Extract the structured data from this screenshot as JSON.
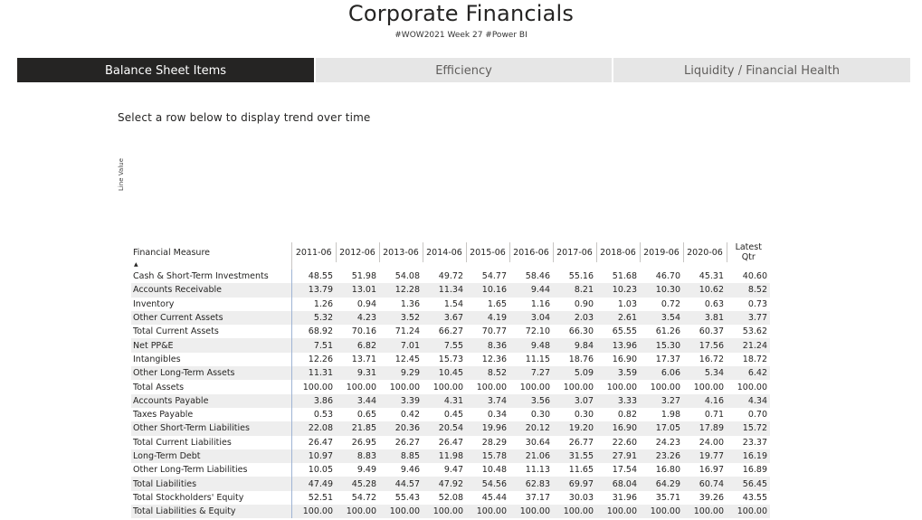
{
  "header": {
    "title": "Corporate Financials",
    "subtitle": "#WOW2021 Week 27 #Power BI"
  },
  "tabs": [
    {
      "label": "Balance Sheet Items",
      "active": true
    },
    {
      "label": "Efficiency",
      "active": false
    },
    {
      "label": "Liquidity / Financial Health",
      "active": false
    }
  ],
  "prompt": "Select a row below to display trend over time",
  "chart": {
    "y_axis_label": "Line Value"
  },
  "table": {
    "first_header": "Financial Measure",
    "sort_indicator": "▲",
    "columns": [
      "2011-06",
      "2012-06",
      "2013-06",
      "2014-06",
      "2015-06",
      "2016-06",
      "2017-06",
      "2018-06",
      "2019-06",
      "2020-06",
      "Latest Qtr"
    ],
    "rows": [
      {
        "label": "Cash & Short-Term Investments",
        "values": [
          "48.55",
          "51.98",
          "54.08",
          "49.72",
          "54.77",
          "58.46",
          "55.16",
          "51.68",
          "46.70",
          "45.31",
          "40.60"
        ]
      },
      {
        "label": "Accounts Receivable",
        "values": [
          "13.79",
          "13.01",
          "12.28",
          "11.34",
          "10.16",
          "9.44",
          "8.21",
          "10.23",
          "10.30",
          "10.62",
          "8.52"
        ]
      },
      {
        "label": "Inventory",
        "values": [
          "1.26",
          "0.94",
          "1.36",
          "1.54",
          "1.65",
          "1.16",
          "0.90",
          "1.03",
          "0.72",
          "0.63",
          "0.73"
        ]
      },
      {
        "label": "Other Current Assets",
        "values": [
          "5.32",
          "4.23",
          "3.52",
          "3.67",
          "4.19",
          "3.04",
          "2.03",
          "2.61",
          "3.54",
          "3.81",
          "3.77"
        ]
      },
      {
        "label": "Total Current Assets",
        "values": [
          "68.92",
          "70.16",
          "71.24",
          "66.27",
          "70.77",
          "72.10",
          "66.30",
          "65.55",
          "61.26",
          "60.37",
          "53.62"
        ]
      },
      {
        "label": "Net PP&E",
        "values": [
          "7.51",
          "6.82",
          "7.01",
          "7.55",
          "8.36",
          "9.48",
          "9.84",
          "13.96",
          "15.30",
          "17.56",
          "21.24"
        ]
      },
      {
        "label": "Intangibles",
        "values": [
          "12.26",
          "13.71",
          "12.45",
          "15.73",
          "12.36",
          "11.15",
          "18.76",
          "16.90",
          "17.37",
          "16.72",
          "18.72"
        ]
      },
      {
        "label": "Other Long-Term Assets",
        "values": [
          "11.31",
          "9.31",
          "9.29",
          "10.45",
          "8.52",
          "7.27",
          "5.09",
          "3.59",
          "6.06",
          "5.34",
          "6.42"
        ]
      },
      {
        "label": "Total Assets",
        "values": [
          "100.00",
          "100.00",
          "100.00",
          "100.00",
          "100.00",
          "100.00",
          "100.00",
          "100.00",
          "100.00",
          "100.00",
          "100.00"
        ]
      },
      {
        "label": "Accounts Payable",
        "values": [
          "3.86",
          "3.44",
          "3.39",
          "4.31",
          "3.74",
          "3.56",
          "3.07",
          "3.33",
          "3.27",
          "4.16",
          "4.34"
        ]
      },
      {
        "label": "Taxes Payable",
        "values": [
          "0.53",
          "0.65",
          "0.42",
          "0.45",
          "0.34",
          "0.30",
          "0.30",
          "0.82",
          "1.98",
          "0.71",
          "0.70"
        ]
      },
      {
        "label": "Other Short-Term Liabilities",
        "values": [
          "22.08",
          "21.85",
          "20.36",
          "20.54",
          "19.96",
          "20.12",
          "19.20",
          "16.90",
          "17.05",
          "17.89",
          "15.72"
        ]
      },
      {
        "label": "Total Current Liabilities",
        "values": [
          "26.47",
          "26.95",
          "26.27",
          "26.47",
          "28.29",
          "30.64",
          "26.77",
          "22.60",
          "24.23",
          "24.00",
          "23.37"
        ]
      },
      {
        "label": "Long-Term Debt",
        "values": [
          "10.97",
          "8.83",
          "8.85",
          "11.98",
          "15.78",
          "21.06",
          "31.55",
          "27.91",
          "23.26",
          "19.77",
          "16.19"
        ]
      },
      {
        "label": "Other Long-Term Liabilities",
        "values": [
          "10.05",
          "9.49",
          "9.46",
          "9.47",
          "10.48",
          "11.13",
          "11.65",
          "17.54",
          "16.80",
          "16.97",
          "16.89"
        ]
      },
      {
        "label": "Total Liabilities",
        "values": [
          "47.49",
          "45.28",
          "44.57",
          "47.92",
          "54.56",
          "62.83",
          "69.97",
          "68.04",
          "64.29",
          "60.74",
          "56.45"
        ]
      },
      {
        "label": "Total Stockholders' Equity",
        "values": [
          "52.51",
          "54.72",
          "55.43",
          "52.08",
          "45.44",
          "37.17",
          "30.03",
          "31.96",
          "35.71",
          "39.26",
          "43.55"
        ]
      },
      {
        "label": "Total Liabilities & Equity",
        "values": [
          "100.00",
          "100.00",
          "100.00",
          "100.00",
          "100.00",
          "100.00",
          "100.00",
          "100.00",
          "100.00",
          "100.00",
          "100.00"
        ]
      }
    ]
  }
}
